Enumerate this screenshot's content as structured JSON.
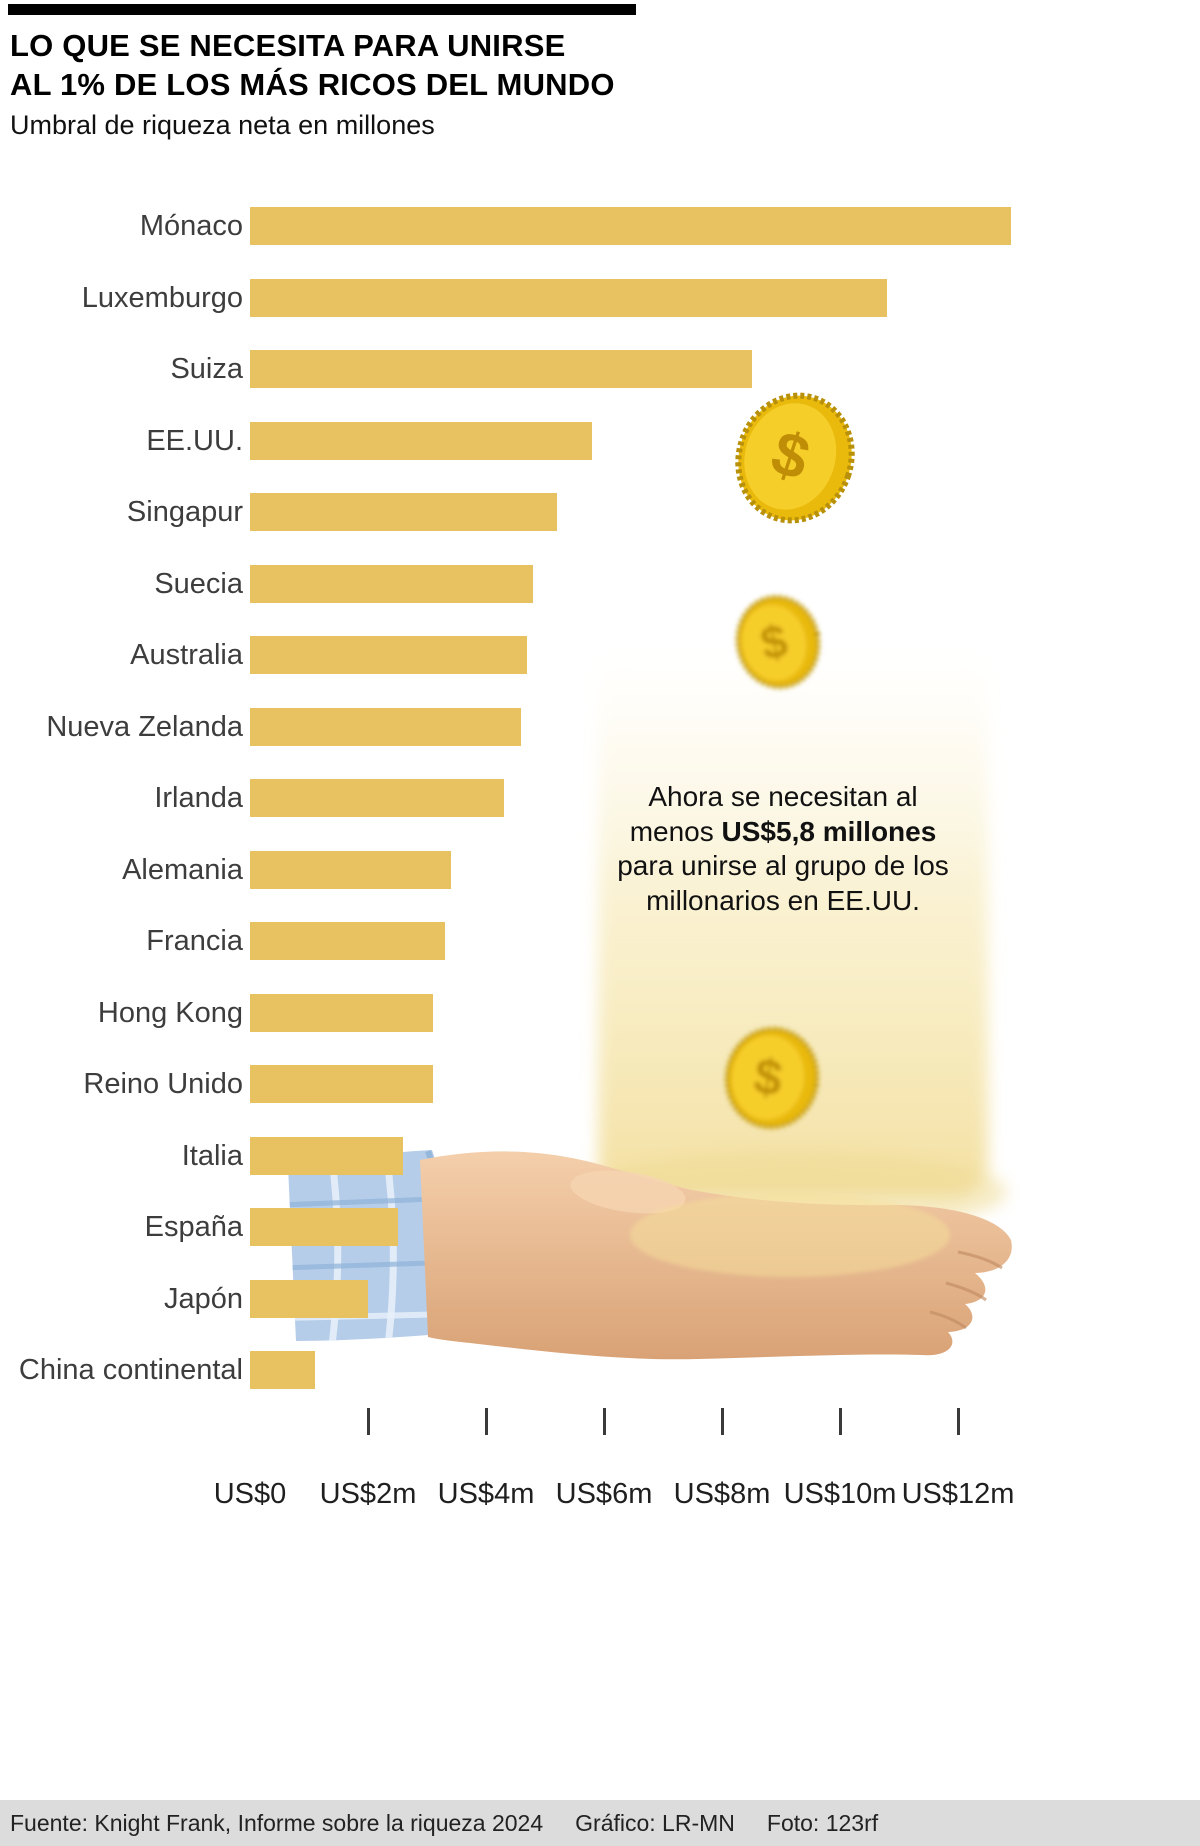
{
  "header": {
    "title_line1": "LO QUE SE NECESITA PARA UNIRSE",
    "title_line2": "AL 1% DE LOS MÁS RICOS DEL MUNDO",
    "subtitle": "Umbral de riqueza neta en millones"
  },
  "chart_data": {
    "type": "bar",
    "orientation": "horizontal",
    "title": "LO QUE SE NECESITA PARA UNIRSE AL 1% DE LOS MÁS RICOS DEL MUNDO",
    "subtitle": "Umbral de riqueza neta en millones",
    "unit": "US$ millones",
    "categories": [
      "Mónaco",
      "Luxemburgo",
      "Suiza",
      "EE.UU.",
      "Singapur",
      "Suecia",
      "Australia",
      "Nueva Zelanda",
      "Irlanda",
      "Alemania",
      "Francia",
      "Hong Kong",
      "Reino Unido",
      "Italia",
      "España",
      "Japón",
      "China continental"
    ],
    "values": [
      12.9,
      10.8,
      8.5,
      5.8,
      5.2,
      4.8,
      4.7,
      4.6,
      4.3,
      3.4,
      3.3,
      3.1,
      3.1,
      2.6,
      2.5,
      2.0,
      1.1
    ],
    "xlim": [
      0,
      12.9
    ],
    "x_ticks": [
      {
        "value": 0,
        "label": "US$0"
      },
      {
        "value": 2,
        "label": "US$2m"
      },
      {
        "value": 4,
        "label": "US$4m"
      },
      {
        "value": 6,
        "label": "US$6m"
      },
      {
        "value": 8,
        "label": "US$8m"
      },
      {
        "value": 10,
        "label": "US$10m"
      },
      {
        "value": 12,
        "label": "US$12m"
      }
    ],
    "bar_color": "#e8c261",
    "grid": false,
    "legend": false
  },
  "annotation": {
    "pre": "Ahora se necesitan al menos ",
    "bold": "US$5,8 millones",
    "post": " para unirse al grupo de los millonarios en EE.UU."
  },
  "footer": {
    "source": "Fuente: Knight Frank, Informe sobre la riqueza 2024",
    "credit": "Gráfico: LR-MN",
    "photo": "Foto: 123rf"
  },
  "illustration": {
    "name": "hand-catching-gold-coins",
    "coin_color": "#f3c513",
    "glow_color": "#f3df9e",
    "skin_color": "#ecbf97",
    "sleeve_color": "#b5cde9"
  }
}
